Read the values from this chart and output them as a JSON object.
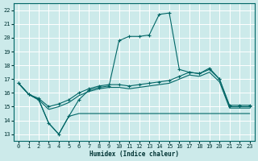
{
  "xlabel": "Humidex (Indice chaleur)",
  "bg_color": "#cceaea",
  "grid_color": "#ffffff",
  "line_color": "#006666",
  "xlim": [
    -0.5,
    23.5
  ],
  "ylim": [
    12.5,
    22.5
  ],
  "yticks": [
    13,
    14,
    15,
    16,
    17,
    18,
    19,
    20,
    21,
    22
  ],
  "xticks": [
    0,
    1,
    2,
    3,
    4,
    5,
    6,
    7,
    8,
    9,
    10,
    11,
    12,
    13,
    14,
    15,
    16,
    17,
    18,
    19,
    20,
    21,
    22,
    23
  ],
  "series": [
    {
      "x": [
        0,
        1,
        2,
        3,
        4,
        5,
        6,
        7,
        8,
        9,
        10,
        11,
        12,
        13,
        14,
        15,
        16,
        17,
        18,
        19,
        20,
        21,
        22,
        23
      ],
      "y": [
        16.7,
        15.9,
        15.5,
        13.8,
        13.0,
        14.3,
        15.5,
        16.2,
        16.4,
        16.5,
        19.8,
        20.1,
        20.1,
        20.2,
        21.7,
        21.8,
        17.7,
        17.5,
        17.4,
        17.8,
        17.0,
        15.0,
        15.0,
        15.0
      ],
      "has_marker": true
    },
    {
      "x": [
        0,
        1,
        2,
        3,
        4,
        5,
        6,
        7,
        8,
        9,
        10,
        11,
        12,
        13,
        14,
        15,
        16,
        17,
        18,
        19,
        20,
        21,
        22,
        23
      ],
      "y": [
        16.7,
        15.9,
        15.6,
        15.0,
        15.2,
        15.5,
        16.0,
        16.3,
        16.5,
        16.6,
        16.6,
        16.5,
        16.6,
        16.7,
        16.8,
        16.9,
        17.2,
        17.5,
        17.4,
        17.7,
        17.0,
        15.1,
        15.1,
        15.1
      ],
      "has_marker": true
    },
    {
      "x": [
        0,
        1,
        2,
        3,
        4,
        5,
        6,
        7,
        8,
        9,
        10,
        11,
        12,
        13,
        14,
        15,
        16,
        17,
        18,
        19,
        20,
        21,
        22,
        23
      ],
      "y": [
        16.7,
        15.9,
        15.5,
        14.8,
        15.0,
        15.3,
        15.8,
        16.1,
        16.3,
        16.4,
        16.4,
        16.3,
        16.4,
        16.5,
        16.6,
        16.7,
        17.0,
        17.3,
        17.2,
        17.5,
        16.8,
        14.9,
        14.9,
        14.9
      ],
      "has_marker": false
    },
    {
      "x": [
        0,
        1,
        2,
        3,
        4,
        5,
        6,
        7,
        8,
        9,
        10,
        11,
        12,
        13,
        14,
        15,
        16,
        17,
        18,
        19,
        20,
        21,
        22,
        23
      ],
      "y": [
        16.7,
        15.9,
        15.5,
        13.8,
        13.0,
        14.3,
        14.5,
        14.5,
        14.5,
        14.5,
        14.5,
        14.5,
        14.5,
        14.5,
        14.5,
        14.5,
        14.5,
        14.5,
        14.5,
        14.5,
        14.5,
        14.5,
        14.5,
        14.5
      ],
      "has_marker": false
    }
  ]
}
